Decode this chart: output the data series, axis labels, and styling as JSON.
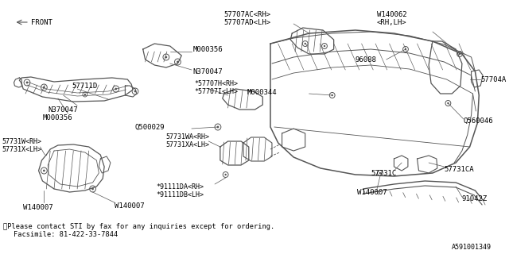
{
  "bg_color": "#ffffff",
  "line_color": "#555555",
  "text_color": "#000000",
  "footnote1": "※Please contact STI by fax for any inquiries except for ordering.",
  "footnote2": "Facsimile: 81-422-33-7844",
  "diagram_id": "A591001349"
}
